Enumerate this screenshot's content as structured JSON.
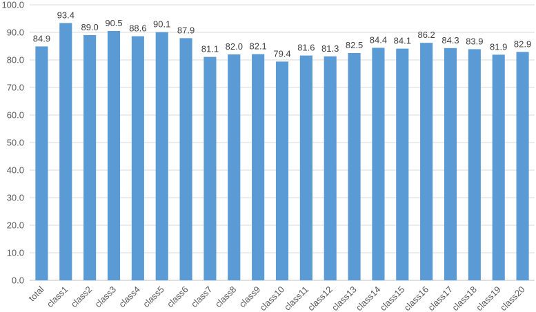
{
  "chart_data": {
    "type": "bar",
    "categories": [
      "total",
      "class1",
      "class2",
      "class3",
      "class4",
      "class5",
      "class6",
      "class7",
      "class8",
      "class9",
      "class10",
      "class11",
      "class12",
      "class13",
      "class14",
      "class15",
      "class16",
      "class17",
      "class18",
      "class19",
      "class20"
    ],
    "values": [
      84.9,
      93.4,
      89.0,
      90.5,
      88.6,
      90.1,
      87.9,
      81.1,
      82.0,
      82.1,
      79.4,
      81.6,
      81.3,
      82.5,
      84.4,
      84.1,
      86.2,
      84.3,
      83.9,
      81.9,
      82.9
    ],
    "value_labels": [
      "84.9",
      "93.4",
      "89.0",
      "90.5",
      "88.6",
      "90.1",
      "87.9",
      "81.1",
      "82.0",
      "82.1",
      "79.4",
      "81.6",
      "81.3",
      "82.5",
      "84.4",
      "84.1",
      "86.2",
      "84.3",
      "83.9",
      "81.9",
      "82.9"
    ],
    "y_ticks": [
      "0.0",
      "10.0",
      "20.0",
      "30.0",
      "40.0",
      "50.0",
      "60.0",
      "70.0",
      "80.0",
      "90.0",
      "100.0"
    ],
    "ylim": [
      0,
      100
    ],
    "title": "",
    "xlabel": "",
    "ylabel": "",
    "grid": true,
    "legend": "none",
    "bar_color": "#5b9bd5"
  }
}
